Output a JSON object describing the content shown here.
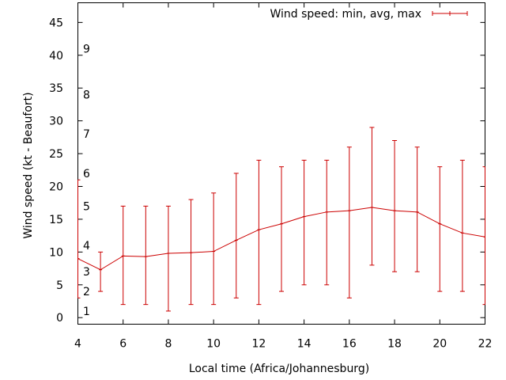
{
  "chart_data": {
    "type": "line",
    "title": "",
    "xlabel": "Local time (Africa/Johannesburg)",
    "ylabel": "Wind speed (kt - Beaufort)",
    "xlim": [
      4,
      22
    ],
    "ylim": [
      -1,
      48
    ],
    "x_ticks": [
      "4",
      "6",
      "8",
      "10",
      "12",
      "14",
      "16",
      "18",
      "20",
      "22"
    ],
    "y_ticks": [
      "0",
      "5",
      "10",
      "15",
      "20",
      "25",
      "30",
      "35",
      "40",
      "45"
    ],
    "beaufort_labels": [
      {
        "label": "1",
        "value": 1
      },
      {
        "label": "2",
        "value": 4
      },
      {
        "label": "3",
        "value": 7
      },
      {
        "label": "4",
        "value": 11
      },
      {
        "label": "5",
        "value": 17
      },
      {
        "label": "6",
        "value": 22
      },
      {
        "label": "7",
        "value": 28
      },
      {
        "label": "8",
        "value": 34
      },
      {
        "label": "9",
        "value": 41
      }
    ],
    "legend": {
      "label": "Wind speed: min, avg, max",
      "position": "top-right"
    },
    "grid": false,
    "color": "#cc0000",
    "series": [
      {
        "name": "Wind speed: min, avg, max",
        "x": [
          4,
          5,
          6,
          7,
          8,
          9,
          10,
          11,
          12,
          13,
          14,
          15,
          16,
          17,
          18,
          19,
          20,
          21,
          22
        ],
        "avg": [
          9,
          7.3,
          9.4,
          9.3,
          9.8,
          9.9,
          10.1,
          11.8,
          13.4,
          14.3,
          15.4,
          16.1,
          16.3,
          16.8,
          16.3,
          16.1,
          14.3,
          12.9,
          12.3
        ],
        "min": [
          3,
          4,
          2,
          2,
          1,
          2,
          2,
          3,
          2,
          4,
          5,
          5,
          3,
          8,
          7,
          7,
          4,
          4,
          2
        ],
        "max": [
          21,
          10,
          17,
          17,
          17,
          18,
          19,
          22,
          24,
          23,
          24,
          24,
          26,
          29,
          27,
          26,
          23,
          24,
          23
        ]
      }
    ]
  }
}
